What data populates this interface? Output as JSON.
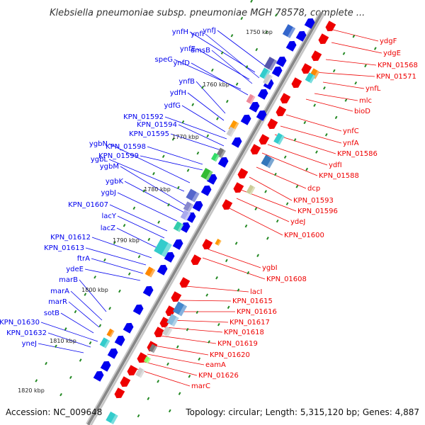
{
  "title": "Klebsiella pneumoniae subsp. pneumoniae MGH 78578, complete ...",
  "accession": "Accession: NC_009648",
  "summary": "Topology: circular; Length: 5,315,120 bp; Genes: 4,887",
  "colors": {
    "forward_gene": "#0000ee",
    "reverse_gene": "#ee0000",
    "backbone": "#888888",
    "tick": "#228822"
  },
  "ticks": [
    "1750 kbp",
    "1760 kbp",
    "1770 kbp",
    "1780 kbp",
    "1790 kbp",
    "1800 kbp",
    "1810 kbp",
    "1820 kbp"
  ],
  "left_labels": [
    "ynfH",
    "ynfI",
    "ynfJ",
    "ynfE",
    "dmsB",
    "speG",
    "ynfD",
    "ynfB",
    "ydfH",
    "ydfG",
    "KPN_01592",
    "KPN_01594",
    "KPN_01595",
    "ygbN",
    "KPN_01598",
    "ygbL",
    "KPN_01599",
    "ygbM",
    "ygbK",
    "ygbJ",
    "KPN_01607",
    "lacY",
    "lacZ",
    "KPN_01612",
    "KPN_01613",
    "ftrA",
    "ydeE",
    "marB",
    "marA",
    "marR",
    "sotB",
    "KPN_01630",
    "KPN_01632",
    "yneJ"
  ],
  "right_labels": [
    "ydgF",
    "ydgE",
    "KPN_01568",
    "KPN_01571",
    "ynfL",
    "mlc",
    "bioD",
    "ynfC",
    "ynfA",
    "KPN_01586",
    "ydfI",
    "KPN_01588",
    "dcp",
    "KPN_01593",
    "KPN_01596",
    "ydeJ",
    "KPN_01600",
    "ygbI",
    "KPN_01608",
    "lacI",
    "KPN_01615",
    "KPN_01616",
    "KPN_01617",
    "KPN_01618",
    "KPN_01619",
    "KPN_01620",
    "eamA",
    "KPN_01626",
    "marC"
  ]
}
